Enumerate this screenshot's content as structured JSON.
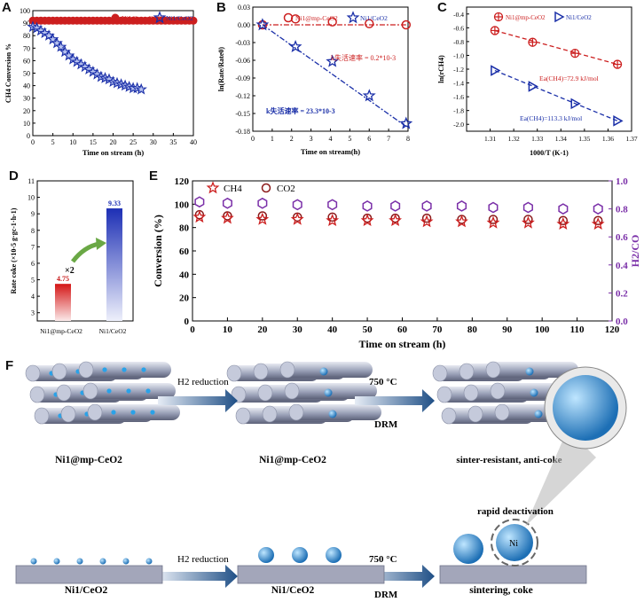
{
  "panels": {
    "A": "A",
    "B": "B",
    "C": "C",
    "D": "D",
    "E": "E",
    "F": "F"
  },
  "colors": {
    "red": "#cc1f1f",
    "blue": "#1a2fa8",
    "purple": "#7a2fa8",
    "darkred": "#8b1a1a"
  },
  "chart_data": [
    {
      "id": "A",
      "type": "scatter",
      "xlabel": "Time on stream (h)",
      "ylabel": "CH4 Conversion %",
      "xlim": [
        0,
        40
      ],
      "ylim": [
        0,
        100
      ],
      "xticks": [
        "0",
        "5",
        "10",
        "15",
        "20",
        "25",
        "30",
        "35",
        "40"
      ],
      "yticks": [
        "0",
        "10",
        "20",
        "30",
        "40",
        "50",
        "60",
        "70",
        "80",
        "90",
        "100"
      ],
      "legend": [
        "Ni1@mp-CeO2",
        "Ni1/CeO2"
      ],
      "series": [
        {
          "name": "Ni1@mp-CeO2",
          "marker": "circle",
          "color": "#cc1f1f",
          "x": [
            0,
            1,
            2,
            3,
            4,
            5,
            6,
            7,
            8,
            9,
            10,
            11,
            12,
            13,
            14,
            15,
            16,
            17,
            18,
            19,
            20,
            21,
            22,
            23,
            24,
            25,
            26,
            27,
            28,
            29,
            30,
            31,
            32,
            33,
            34,
            35,
            36,
            37,
            38,
            39,
            40
          ],
          "y": [
            92,
            92,
            92,
            92,
            92,
            92,
            92,
            92,
            92,
            92,
            92,
            92,
            92,
            92,
            92,
            92,
            92,
            92,
            92,
            92,
            92,
            92,
            92,
            92,
            92,
            92,
            92,
            92,
            92,
            92,
            92,
            92,
            92,
            92,
            92,
            92,
            92,
            92,
            92,
            92,
            92
          ]
        },
        {
          "name": "Ni1/CeO2",
          "marker": "star",
          "color": "#1a2fa8",
          "x": [
            0,
            1,
            2,
            3,
            4,
            5,
            6,
            7,
            8,
            9,
            10,
            11,
            12,
            13,
            14,
            15,
            16,
            17,
            18,
            19,
            20,
            21,
            22,
            23,
            24,
            25,
            26,
            27
          ],
          "y": [
            87,
            86,
            84,
            82,
            80,
            77,
            74,
            71,
            67,
            64,
            61,
            59,
            57,
            55,
            53,
            51,
            49,
            47,
            46,
            45,
            43,
            42,
            41,
            40,
            39,
            38,
            38,
            37
          ]
        }
      ]
    },
    {
      "id": "B",
      "type": "scatter",
      "xlabel": "Time on stream(h)",
      "ylabel": "ln(Rate/Rate0)",
      "xlim": [
        0,
        8
      ],
      "ylim": [
        -0.18,
        0.03
      ],
      "xticks": [
        "0",
        "1",
        "2",
        "3",
        "4",
        "5",
        "6",
        "7",
        "8"
      ],
      "yticks": [
        "0.03",
        "0.00",
        "-0.03",
        "-0.06",
        "-0.09",
        "-0.12",
        "-0.15",
        "-0.18"
      ],
      "legend": [
        "Ni1@mp-CeO2",
        "Ni1/CeO2"
      ],
      "annotations": [
        "k失活速率 = 0.2*10-3",
        "k失活速率 = 23.3*10-3"
      ],
      "series": [
        {
          "name": "Ni1@mp-CeO2",
          "marker": "circle",
          "color": "#cc1f1f",
          "x": [
            0.5,
            2.2,
            4.1,
            6.0,
            7.9
          ],
          "y": [
            0.0,
            0.01,
            0.005,
            0.002,
            0.0
          ]
        },
        {
          "name": "Ni1/CeO2",
          "marker": "star",
          "color": "#1a2fa8",
          "x": [
            0.5,
            2.2,
            4.1,
            6.0,
            7.9
          ],
          "y": [
            0.0,
            -0.037,
            -0.062,
            -0.12,
            -0.167
          ]
        }
      ]
    },
    {
      "id": "C",
      "type": "scatter",
      "xlabel": "1000/T (K-1)",
      "ylabel": "ln(rCH4)",
      "xlim": [
        1.3,
        1.37
      ],
      "ylim": [
        -2.1,
        -0.3
      ],
      "xticks": [
        "1.31",
        "1.32",
        "1.33",
        "1.34",
        "1.35",
        "1.36",
        "1.37"
      ],
      "yticks": [
        "-0.4",
        "-0.6",
        "-0.8",
        "-1.0",
        "-1.2",
        "-1.4",
        "-1.6",
        "-1.8",
        "-2.0"
      ],
      "legend": [
        "Ni1@mp-CeO2",
        "Ni1/CeO2"
      ],
      "annotations": [
        "Ea(CH4)=72.9 kJ/mol",
        "Ea(CH4)=113.3 kJ/mol"
      ],
      "series": [
        {
          "name": "Ni1@mp-CeO2",
          "marker": "circleplus",
          "color": "#cc1f1f",
          "x": [
            1.312,
            1.328,
            1.346,
            1.364
          ],
          "y": [
            -0.64,
            -0.81,
            -0.97,
            -1.13
          ]
        },
        {
          "name": "Ni1/CeO2",
          "marker": "triangle",
          "color": "#1a2fa8",
          "x": [
            1.312,
            1.328,
            1.346,
            1.364
          ],
          "y": [
            -1.22,
            -1.45,
            -1.7,
            -1.95
          ]
        }
      ]
    },
    {
      "id": "D",
      "type": "bar",
      "ylabel": "Rate coke (×10-5 g·gc-1·h-1)",
      "ylim": [
        2.5,
        11
      ],
      "yticks": [
        "3",
        "4",
        "5",
        "6",
        "7",
        "8",
        "9",
        "10",
        "11"
      ],
      "categories": [
        "Ni1@mp-CeO2",
        "Ni1/CeO2"
      ],
      "values": [
        4.75,
        9.33
      ],
      "value_labels": [
        "4.75",
        "9.33"
      ],
      "annotation": "×2"
    },
    {
      "id": "E",
      "type": "scatter",
      "xlabel": "Time on stream (h)",
      "ylabel": "Conversion (%)",
      "y2label": "H2/CO",
      "xlim": [
        0,
        120
      ],
      "ylim": [
        0,
        120
      ],
      "y2lim": [
        0,
        1.0
      ],
      "xticks": [
        "0",
        "10",
        "20",
        "30",
        "40",
        "50",
        "60",
        "70",
        "80",
        "90",
        "100",
        "110",
        "120"
      ],
      "yticks": [
        "0",
        "20",
        "40",
        "60",
        "80",
        "100",
        "120"
      ],
      "y2ticks": [
        "0.0",
        "0.2",
        "0.4",
        "0.6",
        "0.8",
        "1.0"
      ],
      "legend": [
        "CH4",
        "CO2"
      ],
      "series": [
        {
          "name": "CH4",
          "marker": "star",
          "color": "#cc1f1f",
          "x": [
            2,
            10,
            20,
            30,
            40,
            50,
            58,
            67,
            77,
            86,
            96,
            106,
            116
          ],
          "y": [
            89,
            88,
            87,
            87,
            86,
            86,
            86,
            85,
            85,
            84,
            84,
            83,
            83
          ]
        },
        {
          "name": "CO2",
          "marker": "circle",
          "color": "#8b1a1a",
          "x": [
            2,
            10,
            20,
            30,
            40,
            50,
            58,
            67,
            77,
            86,
            96,
            106,
            116
          ],
          "y": [
            91,
            90,
            90,
            89,
            89,
            88,
            88,
            88,
            87,
            87,
            87,
            86,
            86
          ]
        },
        {
          "name": "H2/CO",
          "marker": "hexagon",
          "color": "#7a2fa8",
          "x": [
            2,
            10,
            20,
            30,
            40,
            50,
            58,
            67,
            77,
            86,
            96,
            106,
            116
          ],
          "y": [
            0.85,
            0.84,
            0.84,
            0.83,
            0.83,
            0.82,
            0.82,
            0.82,
            0.82,
            0.81,
            0.81,
            0.8,
            0.8
          ]
        }
      ]
    }
  ],
  "schematic": {
    "top_labels": [
      "Ni1@mp-CeO2",
      "Ni1@mp-CeO2",
      "sinter-resistant, anti-coke"
    ],
    "bottom_labels": [
      "Ni1/CeO2",
      "Ni1/CeO2",
      "sintering, coke"
    ],
    "arrow1_top": "H2 reduction",
    "arrow2_top": "750 °C",
    "arrow2_bottom": "DRM",
    "arrow1_bot": "H2 reduction",
    "arrow2_bot_top": "750 °C",
    "arrow2_bot_bottom": "DRM",
    "deactivation": "rapid deactivation",
    "ni_label": "Ni"
  }
}
